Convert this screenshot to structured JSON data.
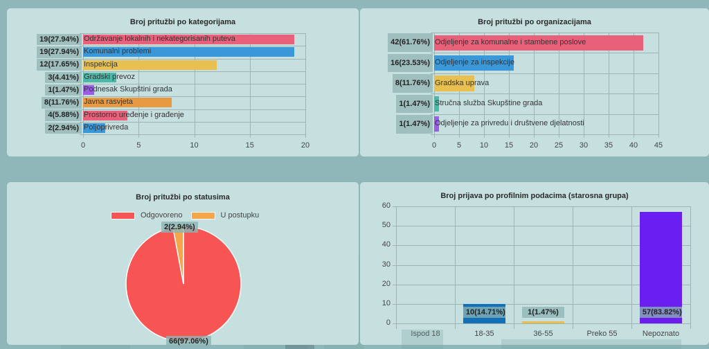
{
  "colors": {
    "pink": "#e8607a",
    "blue": "#3a97d8",
    "yellow": "#e8c050",
    "teal": "#4bb8a8",
    "purple": "#9b5de5",
    "orange": "#e89a40",
    "pie_red": "#f75454",
    "pie_orange": "#f5a54a",
    "violet": "#6a1ff0",
    "darkblue": "#1270b8"
  },
  "chart_data": [
    {
      "type": "bar",
      "orientation": "horizontal",
      "title": "Broj pritužbi po kategorijama",
      "categories": [
        "Održavanje lokalnih i nekategorisanih puteva",
        "Komunalni problemi",
        "Inspekcija",
        "Gradski prevoz",
        "Podnesak Skupštini grada",
        "Javna rasvjeta",
        "Prostorno uređenje i građenje",
        "Poljoprivreda"
      ],
      "values": [
        19,
        19,
        12,
        3,
        1,
        8,
        4,
        2
      ],
      "labels": [
        "19(27.94%)",
        "19(27.94%)",
        "12(17.65%)",
        "3(4.41%)",
        "1(1.47%)",
        "8(11.76%)",
        "4(5.88%)",
        "2(2.94%)"
      ],
      "colors": [
        "#e8607a",
        "#3a97d8",
        "#e8c050",
        "#4bb8a8",
        "#9b5de5",
        "#e89a40",
        "#e8607a",
        "#3a97d8"
      ],
      "xlim": [
        0,
        20
      ],
      "xticks": [
        "0",
        "5",
        "10",
        "15",
        "20"
      ]
    },
    {
      "type": "bar",
      "orientation": "horizontal",
      "title": "Broj pritužbi po organizacijama",
      "categories": [
        "Odjeljenje za komunalne i stambene poslove",
        "Odjeljenje za inspekcije",
        "Gradska uprava",
        "Stručna služba Skupštine grada",
        "Odjeljenje za privredu i društvene djelatnosti"
      ],
      "values": [
        42,
        16,
        8,
        1,
        1
      ],
      "labels": [
        "42(61.76%)",
        "16(23.53%)",
        "8(11.76%)",
        "1(1.47%)",
        "1(1.47%)"
      ],
      "colors": [
        "#e8607a",
        "#3a97d8",
        "#e8c050",
        "#4bb8a8",
        "#9b5de5"
      ],
      "xlim": [
        0,
        45
      ],
      "xticks": [
        "0",
        "5",
        "10",
        "15",
        "20",
        "25",
        "30",
        "35",
        "40",
        "45"
      ]
    },
    {
      "type": "pie",
      "title": "Broj pritužbi po statusima",
      "categories": [
        "Odgovoreno",
        "U postupku"
      ],
      "values": [
        66,
        2
      ],
      "labels": [
        "66(97.06%)",
        "2(2.94%)"
      ],
      "colors": [
        "#f75454",
        "#f5a54a"
      ],
      "legend": "top"
    },
    {
      "type": "bar",
      "title": "Broj prijava po profilnim podacima (starosna grupa)",
      "categories": [
        "Ispod 18",
        "18-35",
        "36-55",
        "Preko 55",
        "Nepoznato"
      ],
      "values": [
        0,
        10,
        1,
        0,
        57
      ],
      "labels": [
        "",
        "10(14.71%)",
        "1(1.47%)",
        "",
        "57(83.82%)"
      ],
      "colors": [
        "#3a97d8",
        "#1270b8",
        "#e8c050",
        "#4bb8a8",
        "#6a1ff0"
      ],
      "ylim": [
        0,
        60
      ],
      "yticks": [
        "0",
        "10",
        "20",
        "30",
        "40",
        "50",
        "60"
      ]
    }
  ]
}
